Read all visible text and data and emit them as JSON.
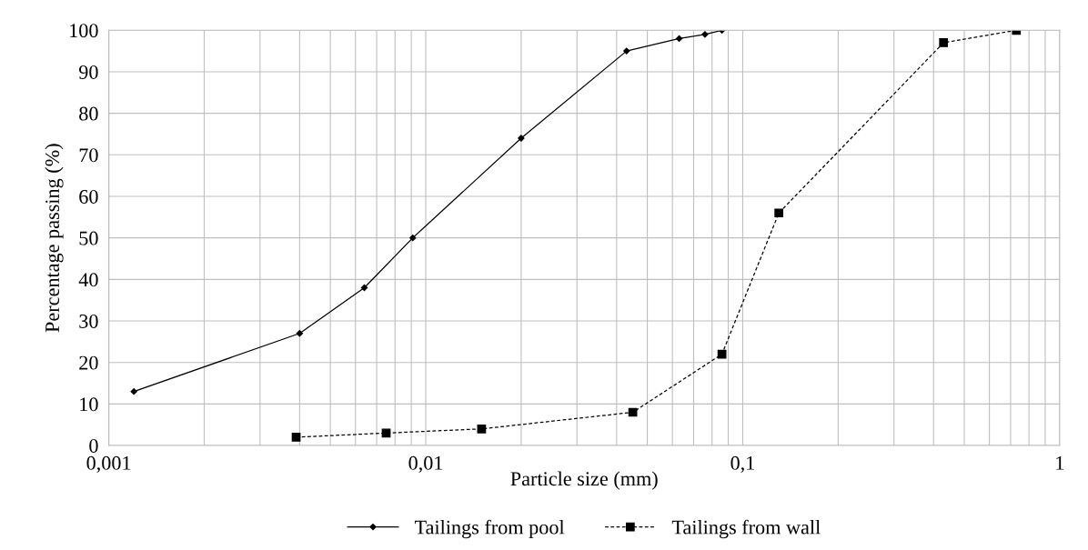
{
  "chart_data": {
    "type": "line",
    "xlabel": "Particle size (mm)",
    "ylabel": "Percentage passing (%)",
    "log": "x",
    "xlim": [
      0.001,
      1
    ],
    "xticks": [
      {
        "value": 0.001,
        "label": "0,001"
      },
      {
        "value": 0.01,
        "label": "0,01"
      },
      {
        "value": 0.1,
        "label": "0,1"
      },
      {
        "value": 1,
        "label": "1"
      }
    ],
    "ylim": [
      0,
      100
    ],
    "yticks": [
      0,
      10,
      20,
      30,
      40,
      50,
      60,
      70,
      80,
      90,
      100
    ],
    "grid": true,
    "legend": "bottom",
    "series": [
      {
        "name": "Tailings from pool",
        "color": "#000000",
        "marker": "diamond",
        "line_style": "solid",
        "x": [
          0.0012,
          0.004,
          0.0064,
          0.0091,
          0.02,
          0.043,
          0.063,
          0.076,
          0.086
        ],
        "values": [
          13,
          27,
          38,
          50,
          74,
          95,
          98,
          99,
          100
        ]
      },
      {
        "name": "Tailings from wall",
        "color": "#000000",
        "marker": "square",
        "line_style": "dashed",
        "x": [
          0.0039,
          0.0075,
          0.015,
          0.045,
          0.086,
          0.13,
          0.43,
          0.73
        ],
        "values": [
          2,
          3,
          4,
          8,
          22,
          56,
          97,
          100
        ]
      }
    ]
  }
}
